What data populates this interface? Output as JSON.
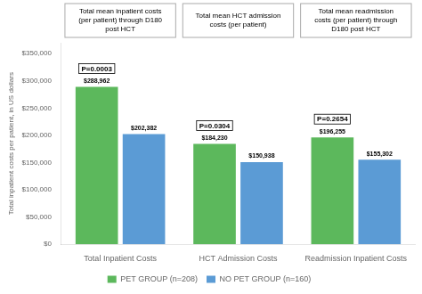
{
  "chart_data": {
    "type": "bar",
    "categories": [
      "Total Inpatient Costs",
      "HCT Admission Costs",
      "Readmission Inpatient Costs"
    ],
    "series": [
      {
        "name": "PET GROUP (n=208)",
        "color": "#5cb85c",
        "values": [
          288962,
          184230,
          196255
        ],
        "value_labels": [
          "$288,962",
          "$184,230",
          "$196,255"
        ]
      },
      {
        "name": "NO PET GROUP (n=160)",
        "color": "#5b9bd5",
        "values": [
          202382,
          150938,
          155302
        ],
        "value_labels": [
          "$202,382",
          "$150,938",
          "$155,302"
        ]
      }
    ],
    "data_labels": true,
    "annotations": [
      {
        "text": "P=0.0003",
        "category": "Total Inpatient Costs"
      },
      {
        "text": "P=0.0304",
        "category": "HCT Admission Costs"
      },
      {
        "text": "P=0.2654",
        "category": "Readmission Inpatient Costs"
      }
    ],
    "headers": [
      "Total mean inpatient costs\n(per patient) through D180\npost HCT",
      "Total mean HCT admission\ncosts (per patient)",
      "Total mean readmission\ncosts (per patient) through\nD180 post HCT"
    ],
    "ylabel": "Total inpatient costs per patient, in US dollars",
    "ylim": [
      0,
      370000
    ],
    "yticks": [
      {
        "value": 0,
        "label": "$0"
      },
      {
        "value": 50000,
        "label": "$50,000"
      },
      {
        "value": 100000,
        "label": "$100,000"
      },
      {
        "value": 150000,
        "label": "$150,000"
      },
      {
        "value": 200000,
        "label": "$200,000"
      },
      {
        "value": 250000,
        "label": "$250,000"
      },
      {
        "value": 300000,
        "label": "$300,000"
      },
      {
        "value": 350000,
        "label": "$350,000"
      }
    ],
    "grid": false,
    "legend": "bottom"
  }
}
